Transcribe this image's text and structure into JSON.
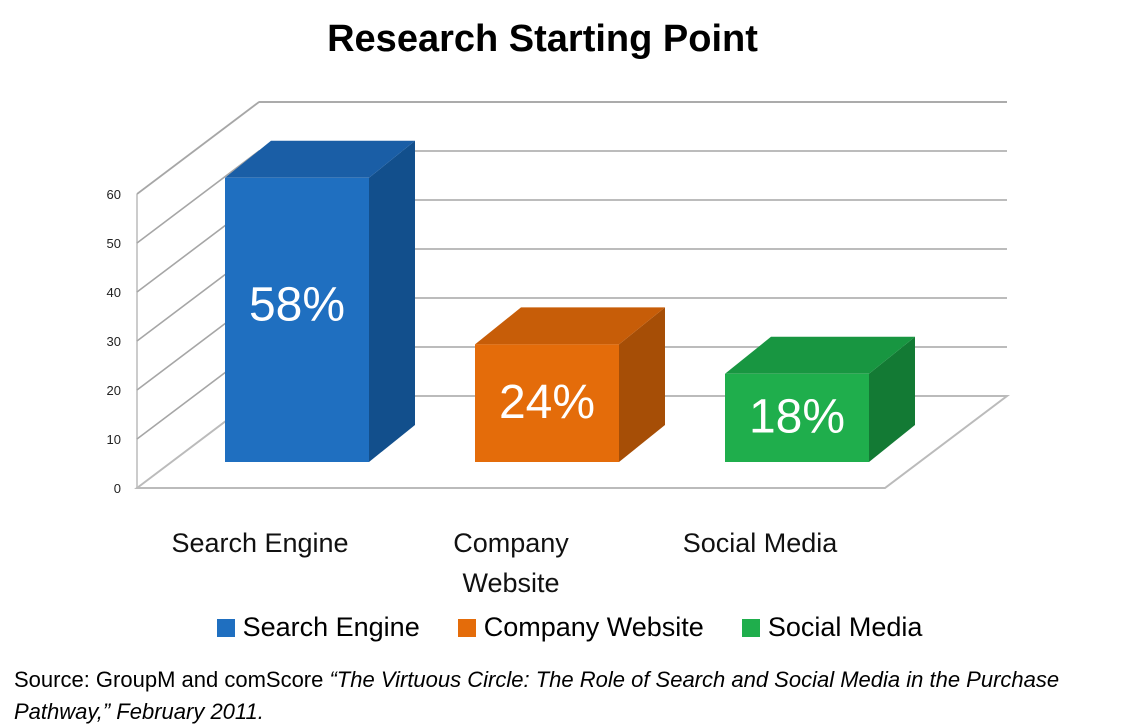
{
  "chart_data": {
    "type": "bar",
    "title": "Research Starting Point",
    "categories": [
      "Search Engine",
      "Company Website",
      "Social Media"
    ],
    "category_label_lines": [
      [
        "Search Engine"
      ],
      [
        "Company",
        "Website"
      ],
      [
        "Social Media"
      ]
    ],
    "values": [
      58,
      24,
      18
    ],
    "data_labels": [
      "58%",
      "24%",
      "18%"
    ],
    "colors": [
      "#1f6fc0",
      "#e46c0a",
      "#1fae4c"
    ],
    "side_colors": [
      "#124f8c",
      "#a64e06",
      "#137a34"
    ],
    "top_colors": [
      "#1a5ea6",
      "#c75d08",
      "#189641"
    ],
    "ylim": [
      0,
      60
    ],
    "yticks": [
      "0",
      "10",
      "20",
      "30",
      "40",
      "50",
      "60"
    ],
    "grid": true,
    "legend": {
      "position": "bottom",
      "entries": [
        "Search Engine",
        "Company Website",
        "Social Media"
      ]
    },
    "style": "3d-column"
  },
  "source": {
    "prefix": "Source: GroupM and comScore ",
    "italic": "“The Virtuous Circle: The Role of Search and Social Media in the Purchase Pathway,” February 2011."
  }
}
